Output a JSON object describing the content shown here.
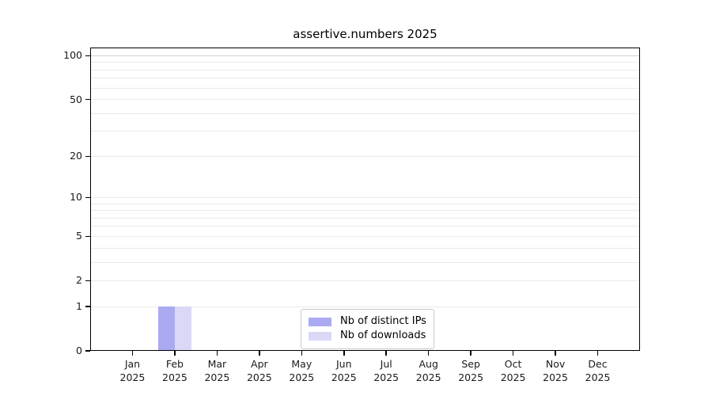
{
  "figure": {
    "background": "#ffffff"
  },
  "chart_data": {
    "type": "bar",
    "title": "assertive.numbers 2025",
    "x_axis": {
      "categories": [
        "Jan",
        "Feb",
        "Mar",
        "Apr",
        "May",
        "Jun",
        "Jul",
        "Aug",
        "Sep",
        "Oct",
        "Nov",
        "Dec"
      ],
      "year_label": "2025"
    },
    "y_axis": {
      "scale": "log1p",
      "ticks": [
        0,
        1,
        2,
        5,
        10,
        20,
        50,
        100
      ],
      "minor_gridlines": [
        1,
        2,
        3,
        4,
        5,
        6,
        7,
        8,
        9,
        10,
        20,
        30,
        40,
        50,
        60,
        70,
        80,
        90
      ],
      "major_gridlines": [
        100
      ],
      "ylim": [
        0,
        114
      ]
    },
    "series": [
      {
        "name": "Nb of distinct IPs",
        "color": "#aaaaf2",
        "values": [
          0,
          1,
          0,
          0,
          0,
          0,
          0,
          0,
          0,
          0,
          0,
          0
        ]
      },
      {
        "name": "Nb of downloads",
        "color": "#d9d9f7",
        "values": [
          0,
          1,
          0,
          0,
          0,
          0,
          0,
          0,
          0,
          0,
          0,
          0
        ]
      }
    ],
    "bar_width_fraction": 0.4,
    "legend": {
      "position": "lower center",
      "entries": [
        "Nb of distinct IPs",
        "Nb of downloads"
      ]
    },
    "grid": "horizontal",
    "colors": {
      "grid_minor": "#eaeaea",
      "grid_major": "#d2d2d2",
      "axis": "#000000",
      "tick_label": "#1a1a1a",
      "legend_border": "#c8c8c8",
      "legend_bg": "#ffffff",
      "background": "#ffffff"
    }
  }
}
